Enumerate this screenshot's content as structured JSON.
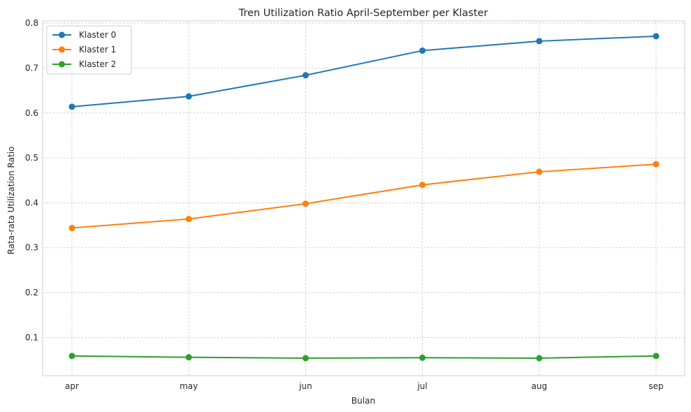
{
  "chart_data": {
    "type": "line",
    "title": "Tren Utilization Ratio April-September per Klaster",
    "xlabel": "Bulan",
    "ylabel": "Rata-rata Utilization Ratio",
    "categories": [
      "apr",
      "may",
      "jun",
      "jul",
      "aug",
      "sep"
    ],
    "ylim": [
      0.015,
      0.805
    ],
    "yticks": [
      0.1,
      0.2,
      0.3,
      0.4,
      0.5,
      0.6,
      0.7,
      0.8
    ],
    "ytick_labels": [
      "0.1",
      "0.2",
      "0.3",
      "0.4",
      "0.5",
      "0.6",
      "0.7",
      "0.8"
    ],
    "grid": true,
    "legend_position": "top-left",
    "series": [
      {
        "name": "Klaster 0",
        "color": "#1f77b4",
        "values": [
          0.614,
          0.637,
          0.684,
          0.739,
          0.76,
          0.771
        ]
      },
      {
        "name": "Klaster 1",
        "color": "#ff7f0e",
        "values": [
          0.344,
          0.364,
          0.398,
          0.44,
          0.469,
          0.486
        ]
      },
      {
        "name": "Klaster 2",
        "color": "#2ca02c",
        "values": [
          0.059,
          0.056,
          0.054,
          0.055,
          0.054,
          0.059
        ]
      }
    ]
  }
}
